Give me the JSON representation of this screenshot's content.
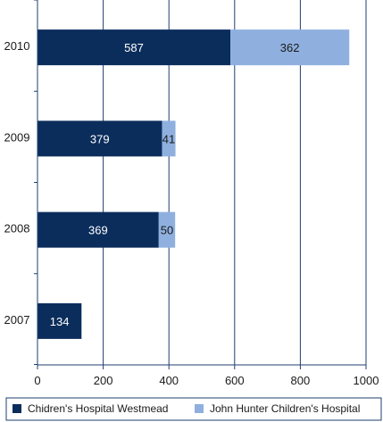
{
  "chart_data": {
    "type": "bar",
    "orientation": "horizontal",
    "stacked": true,
    "categories": [
      "2010",
      "2009",
      "2008",
      "2007"
    ],
    "series": [
      {
        "name": "Chidren's Hospital Westmead",
        "values": [
          587,
          379,
          369,
          134
        ],
        "color": "#0b2d5c",
        "label_color": "#ffffff"
      },
      {
        "name": "John Hunter Children's Hospital",
        "values": [
          362,
          41,
          50,
          0
        ],
        "color": "#8fb0df",
        "label_color": "#1a1a1a"
      }
    ],
    "xlim": [
      0,
      1000
    ],
    "xticks": [
      0,
      200,
      400,
      600,
      800,
      1000
    ],
    "grid": "vertical",
    "legend_position": "bottom",
    "frame_color": "#1f3f6f",
    "title": "",
    "xlabel": "",
    "ylabel": ""
  }
}
